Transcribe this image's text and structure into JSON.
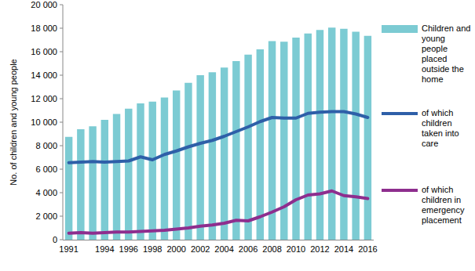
{
  "chart_data": {
    "type": "bar",
    "y_label": "No. of children and young people",
    "categories": [
      "1991",
      null,
      null,
      "1994",
      null,
      "1996",
      null,
      "1998",
      null,
      "2000",
      null,
      "2002",
      null,
      "2004",
      null,
      "2006",
      null,
      "2008",
      null,
      "2010",
      null,
      "2012",
      null,
      "2014",
      null,
      "2016"
    ],
    "series": [
      {
        "name": "Children and young people placed outside the home",
        "type": "bar",
        "color": "#7ccbd3",
        "values": [
          8750,
          9400,
          9650,
          10200,
          10700,
          11150,
          11600,
          11750,
          12100,
          12700,
          13350,
          14000,
          14250,
          14650,
          15200,
          15750,
          16200,
          16900,
          16850,
          17200,
          17550,
          17850,
          18050,
          17950,
          17700,
          17350
        ]
      },
      {
        "name": "of which children taken into care",
        "type": "line",
        "color": "#2e5fa8",
        "values": [
          6550,
          6600,
          6650,
          6600,
          6650,
          6700,
          7050,
          6800,
          7250,
          7550,
          7900,
          8200,
          8450,
          8800,
          9200,
          9600,
          10050,
          10400,
          10350,
          10350,
          10750,
          10850,
          10900,
          10900,
          10700,
          10400
        ]
      },
      {
        "name": "of which children in emergency placement",
        "type": "line",
        "color": "#8e2e8e",
        "values": [
          550,
          600,
          550,
          600,
          650,
          650,
          700,
          750,
          800,
          900,
          1000,
          1150,
          1250,
          1400,
          1650,
          1600,
          1950,
          2350,
          2800,
          3400,
          3800,
          3900,
          4150,
          3750,
          3650,
          3500
        ]
      }
    ],
    "ylim": [
      0,
      20000
    ],
    "yticks": [
      0,
      {
        "value": 2000,
        "label": "2 000"
      },
      {
        "value": 4000,
        "label": "4 000"
      },
      {
        "value": 6000,
        "label": "6 000"
      },
      {
        "value": 8000,
        "label": "8 000"
      },
      {
        "value": 10000,
        "label": "10 000"
      },
      {
        "value": 12000,
        "label": "12 000"
      },
      {
        "value": 14000,
        "label": "14 000"
      },
      {
        "value": 16000,
        "label": "16 000"
      },
      {
        "value": 18000,
        "label": "18 000"
      },
      {
        "value": 20000,
        "label": "20 000"
      }
    ],
    "grid": false,
    "legend": "right"
  }
}
